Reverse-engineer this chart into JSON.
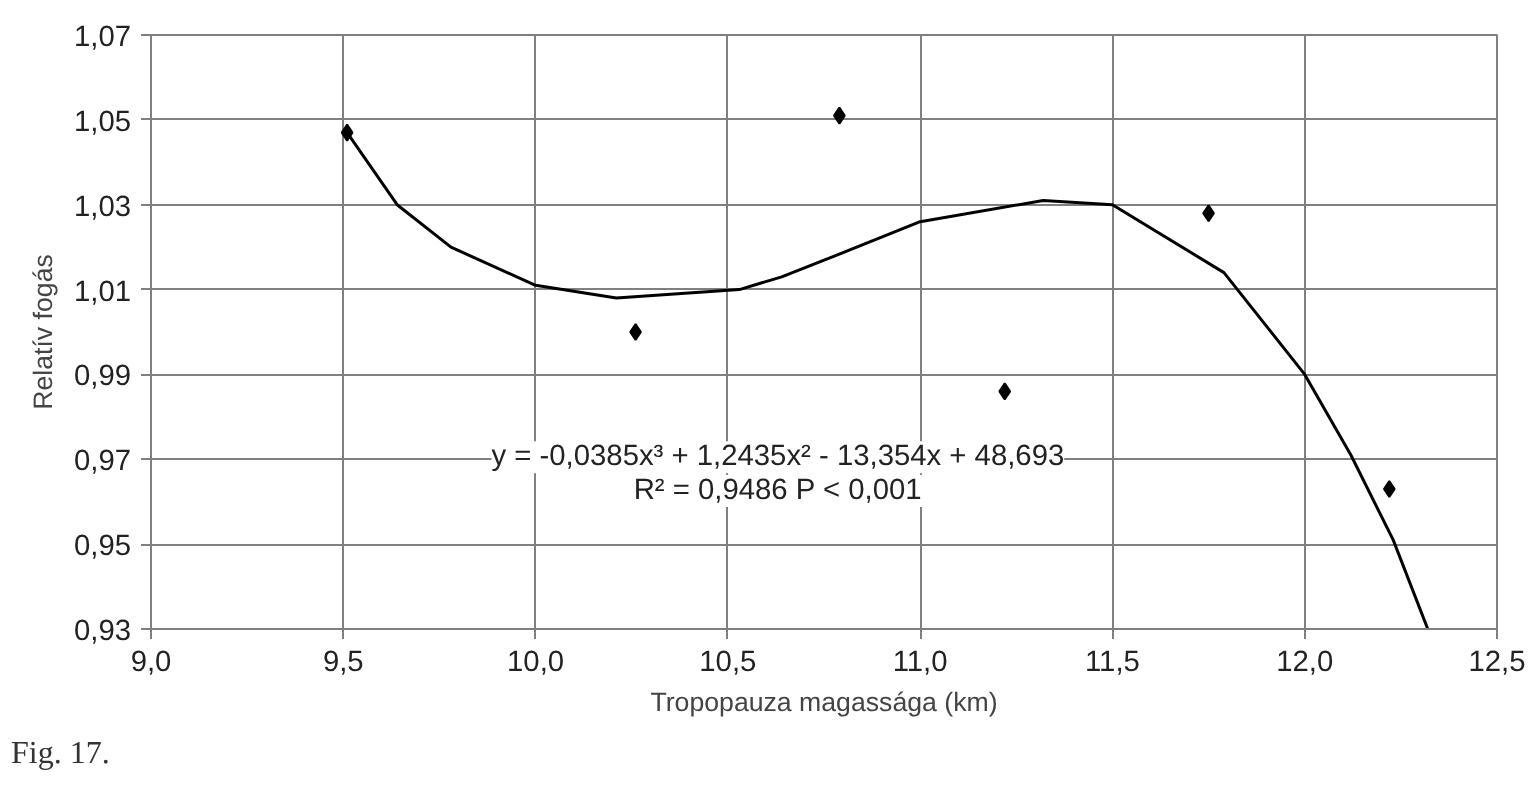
{
  "chart_data": {
    "type": "scatter",
    "xlabel": "Tropopauza magassága (km)",
    "ylabel": "Relatív fogás",
    "xlim": [
      9.0,
      12.5
    ],
    "ylim": [
      0.93,
      1.07
    ],
    "xticks": [
      {
        "value": 9.0,
        "label": "9,0"
      },
      {
        "value": 9.5,
        "label": "9,5"
      },
      {
        "value": 10.0,
        "label": "10,0"
      },
      {
        "value": 10.5,
        "label": "10,5"
      },
      {
        "value": 11.0,
        "label": "11,0"
      },
      {
        "value": 11.5,
        "label": "11,5"
      },
      {
        "value": 12.0,
        "label": "12,0"
      },
      {
        "value": 12.5,
        "label": "12,5"
      }
    ],
    "yticks": [
      {
        "value": 0.93,
        "label": "0,93"
      },
      {
        "value": 0.95,
        "label": "0,95"
      },
      {
        "value": 0.97,
        "label": "0,97"
      },
      {
        "value": 0.99,
        "label": "0,99"
      },
      {
        "value": 1.01,
        "label": "1,01"
      },
      {
        "value": 1.03,
        "label": "1,03"
      },
      {
        "value": 1.05,
        "label": "1,05"
      },
      {
        "value": 1.07,
        "label": "1,07"
      }
    ],
    "grid": true,
    "series": [
      {
        "color": "#000000",
        "marker": "diamond",
        "x": [
          9.51,
          10.26,
          10.79,
          11.22,
          11.75,
          12.22
        ],
        "values": [
          1.047,
          1.0,
          1.051,
          0.986,
          1.028,
          0.963
        ]
      },
      {
        "type": "line",
        "color": "#000000",
        "marker": "none",
        "line_style": "solid",
        "x": [
          9.51,
          9.64,
          9.78,
          10.0,
          10.21,
          10.53,
          10.64,
          10.78,
          11.0,
          11.32,
          11.5,
          11.79,
          12.0,
          12.12,
          12.23,
          12.32
        ],
        "values": [
          1.047,
          1.03,
          1.02,
          1.011,
          1.008,
          1.01,
          1.013,
          1.018,
          1.026,
          1.031,
          1.03,
          1.014,
          0.99,
          0.971,
          0.951,
          0.93
        ]
      }
    ],
    "annotations": [
      "y = -0,0385x³ + 1,2435x² - 13,354x + 48,693",
      "R² = 0,9486 P < 0,001",
      "Fig. 17."
    ]
  }
}
